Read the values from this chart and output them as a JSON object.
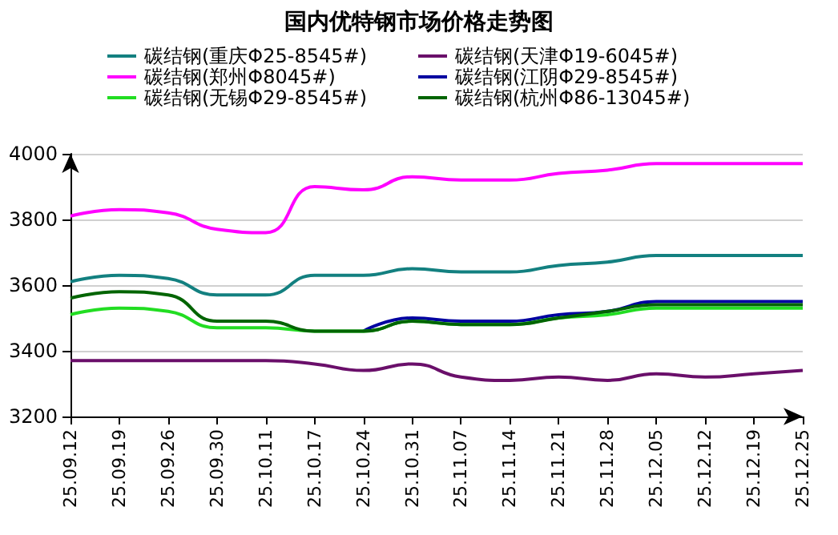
{
  "chart_data": {
    "type": "line",
    "title": "国内优特钢市场价格走势图",
    "categories": [
      "25.09.12",
      "25.09.19",
      "25.09.26",
      "25.09.30",
      "25.10.11",
      "25.10.17",
      "25.10.24",
      "25.10.31",
      "25.11.07",
      "25.11.14",
      "25.11.21",
      "25.11.28",
      "25.12.05",
      "25.12.12",
      "25.12.19",
      "25.12.25"
    ],
    "series": [
      {
        "name": "碳结钢(重庆Φ25-8545#)",
        "color": "#138080",
        "values": [
          3610,
          3630,
          3620,
          3570,
          3570,
          3630,
          3630,
          3650,
          3640,
          3640,
          3660,
          3670,
          3690,
          3690,
          3690,
          3690
        ]
      },
      {
        "name": "碳结钢(天津Φ19-6045#)",
        "color": "#6a0f6a",
        "values": [
          3370,
          3370,
          3370,
          3370,
          3370,
          3360,
          3340,
          3360,
          3320,
          3310,
          3320,
          3310,
          3330,
          3320,
          3330,
          3340
        ]
      },
      {
        "name": "碳结钢(郑州Φ8045#)",
        "color": "#ff00ff",
        "values": [
          3810,
          3830,
          3820,
          3770,
          3760,
          3900,
          3890,
          3930,
          3920,
          3920,
          3940,
          3950,
          3970,
          3970,
          3970,
          3970
        ]
      },
      {
        "name": "碳结钢(江阴Φ29-8545#)",
        "color": "#0000a0",
        "values": [
          null,
          null,
          null,
          null,
          null,
          null,
          3460,
          3500,
          3490,
          3490,
          3510,
          3520,
          3550,
          3550,
          3550,
          3550
        ]
      },
      {
        "name": "碳结钢(无锡Φ29-8545#)",
        "color": "#22dd22",
        "values": [
          3510,
          3530,
          3520,
          3470,
          3470,
          3460,
          3460,
          3490,
          3480,
          3480,
          3500,
          3510,
          3530,
          3530,
          3530,
          3530
        ]
      },
      {
        "name": "碳结钢(杭州Φ86-13045#)",
        "color": "#006400",
        "values": [
          3560,
          3580,
          3570,
          3490,
          3490,
          3460,
          3460,
          3490,
          3480,
          3480,
          3500,
          3520,
          3540,
          3540,
          3540,
          3540
        ]
      }
    ],
    "ylim": [
      3200,
      4000
    ],
    "yticks": [
      3200,
      3400,
      3600,
      3800,
      4000
    ],
    "grid": "y",
    "legend": "top",
    "marker": "none",
    "line_style": "solid"
  }
}
